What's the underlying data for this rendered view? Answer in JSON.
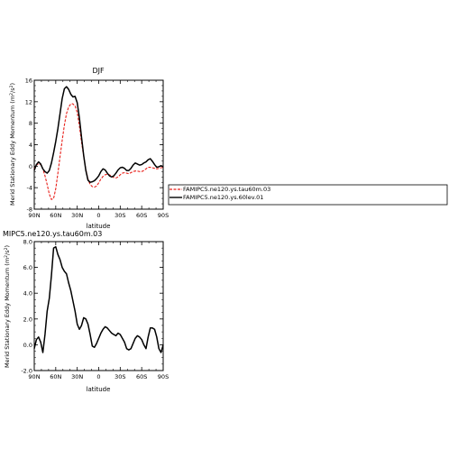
{
  "chart_data": [
    {
      "type": "line",
      "title": "DJF",
      "xlabel": "latitude",
      "ylabel": "Merid Stationary Eddy Momentum (m",
      "ylabel_units_sup": "2",
      "ylabel_tail": "/s",
      "ylabel_tail_sup": "2",
      "ylabel_close": ")",
      "xlim": [
        90,
        -90
      ],
      "ylim": [
        -8,
        16
      ],
      "x_ticks": [
        90,
        60,
        30,
        0,
        -30,
        -60,
        -90
      ],
      "x_tick_labels": [
        "90N",
        "60N",
        "30N",
        "0",
        "30S",
        "60S",
        "90S"
      ],
      "y_ticks": [
        -8,
        -4,
        0,
        4,
        8,
        12,
        16
      ],
      "y_tick_labels": [
        "-8",
        "-4",
        "0",
        "4",
        "8",
        "12",
        "16"
      ],
      "series": [
        {
          "name": "FAMIPC5.ne120.ys.tau60m.03",
          "color": "#e8201a",
          "dash": "3,1.5",
          "x": [
            90,
            87,
            84,
            81,
            78,
            75,
            72,
            69,
            66,
            63,
            60,
            57,
            54,
            51,
            48,
            45,
            42,
            39,
            36,
            33,
            30,
            27,
            24,
            21,
            18,
            15,
            12,
            9,
            6,
            3,
            0,
            -3,
            -6,
            -9,
            -12,
            -15,
            -18,
            -21,
            -24,
            -27,
            -30,
            -33,
            -36,
            -39,
            -42,
            -45,
            -48,
            -51,
            -54,
            -57,
            -60,
            -63,
            -66,
            -69,
            -72,
            -75,
            -78,
            -81,
            -84,
            -87,
            -90
          ],
          "y": [
            -0.5,
            0.2,
            0.5,
            0.3,
            -0.5,
            -1.8,
            -3.4,
            -5.2,
            -6.2,
            -6.0,
            -4.2,
            -1.3,
            1.8,
            4.8,
            7.6,
            9.8,
            11.0,
            11.6,
            11.6,
            11.2,
            10.0,
            7.5,
            4.5,
            1.8,
            -0.6,
            -2.4,
            -3.4,
            -3.8,
            -3.9,
            -3.7,
            -3.1,
            -2.4,
            -1.9,
            -1.6,
            -1.5,
            -1.6,
            -1.9,
            -2.1,
            -2.2,
            -2.0,
            -1.6,
            -1.3,
            -1.2,
            -1.3,
            -1.4,
            -1.2,
            -1.0,
            -0.9,
            -0.9,
            -1.0,
            -1.0,
            -0.8,
            -0.5,
            -0.2,
            -0.2,
            -0.3,
            -0.4,
            -0.5,
            -0.4,
            -0.3,
            -0.2
          ]
        },
        {
          "name": "FAMIPC5.ne120.ys.60lev.01",
          "color": "#000000",
          "dash": "",
          "x": [
            90,
            87,
            84,
            81,
            78,
            75,
            72,
            69,
            66,
            63,
            60,
            57,
            54,
            51,
            48,
            45,
            42,
            39,
            36,
            33,
            30,
            27,
            24,
            21,
            18,
            15,
            12,
            9,
            6,
            3,
            0,
            -3,
            -6,
            -9,
            -12,
            -15,
            -18,
            -21,
            -24,
            -27,
            -30,
            -33,
            -36,
            -39,
            -42,
            -45,
            -48,
            -51,
            -54,
            -57,
            -60,
            -63,
            -66,
            -69,
            -72,
            -75,
            -78,
            -81,
            -84,
            -87,
            -90
          ],
          "y": [
            -0.8,
            0.3,
            0.8,
            0.4,
            -0.5,
            -1.0,
            -1.3,
            -0.8,
            0.6,
            2.5,
            4.6,
            7.0,
            9.8,
            12.6,
            14.4,
            14.8,
            14.3,
            13.4,
            12.9,
            13.0,
            11.8,
            9.0,
            5.4,
            2.0,
            -0.8,
            -2.6,
            -3.0,
            -2.9,
            -2.7,
            -2.3,
            -1.8,
            -1.0,
            -0.5,
            -0.7,
            -1.3,
            -1.8,
            -2.0,
            -1.8,
            -1.3,
            -0.7,
            -0.3,
            -0.2,
            -0.4,
            -0.8,
            -0.8,
            -0.4,
            0.2,
            0.6,
            0.4,
            0.2,
            0.3,
            0.6,
            0.8,
            1.2,
            1.4,
            0.9,
            0.3,
            -0.2,
            -0.1,
            0.1,
            -0.1
          ]
        }
      ],
      "legend": {
        "placement": "right",
        "entries": [
          "FAMIPC5.ne120.ys.tau60m.03",
          "FAMIPC5.ne120.ys.60lev.01"
        ]
      },
      "grid": false
    },
    {
      "type": "line",
      "title": "MIPC5.ne120.ys.tau60m.03",
      "xlabel": "latitude",
      "ylabel": "Merid Stationary Eddy Momentum (m",
      "ylabel_units_sup": "2",
      "ylabel_tail": "/s",
      "ylabel_tail_sup": "2",
      "ylabel_close": ")",
      "xlim": [
        90,
        -90
      ],
      "ylim": [
        -2,
        8
      ],
      "x_ticks": [
        90,
        60,
        30,
        0,
        -30,
        -60,
        -90
      ],
      "x_tick_labels": [
        "90N",
        "60N",
        "30N",
        "0",
        "30S",
        "60S",
        "90S"
      ],
      "y_ticks": [
        -2,
        0,
        2,
        4,
        6,
        8
      ],
      "y_tick_labels": [
        "-2.0",
        "0.0",
        "2.0",
        "4.0",
        "6.0",
        "8.0"
      ],
      "series": [
        {
          "color": "#000000",
          "dash": "",
          "x": [
            90,
            87,
            84,
            81,
            78,
            75,
            72,
            69,
            66,
            63,
            60,
            57,
            54,
            51,
            48,
            45,
            42,
            39,
            36,
            33,
            30,
            27,
            24,
            21,
            18,
            15,
            12,
            9,
            6,
            3,
            0,
            -3,
            -6,
            -9,
            -12,
            -15,
            -18,
            -21,
            -24,
            -27,
            -30,
            -33,
            -36,
            -39,
            -42,
            -45,
            -48,
            -51,
            -54,
            -57,
            -60,
            -63,
            -66,
            -69,
            -72,
            -75,
            -78,
            -81,
            -84,
            -87,
            -90
          ],
          "y": [
            -0.3,
            0.4,
            0.6,
            0.2,
            -0.6,
            0.8,
            2.6,
            3.6,
            5.4,
            7.5,
            7.6,
            7.0,
            6.6,
            6.0,
            5.7,
            5.5,
            4.8,
            4.2,
            3.4,
            2.6,
            1.6,
            1.2,
            1.5,
            2.1,
            2.0,
            1.6,
            0.8,
            -0.1,
            -0.2,
            0.1,
            0.5,
            0.9,
            1.2,
            1.4,
            1.3,
            1.1,
            0.9,
            0.8,
            0.7,
            0.9,
            0.8,
            0.5,
            0.2,
            -0.3,
            -0.4,
            -0.3,
            0.1,
            0.5,
            0.7,
            0.6,
            0.4,
            0.0,
            -0.3,
            0.6,
            1.3,
            1.3,
            1.2,
            0.6,
            -0.3,
            -0.6,
            0.0
          ]
        }
      ],
      "grid": false
    }
  ]
}
